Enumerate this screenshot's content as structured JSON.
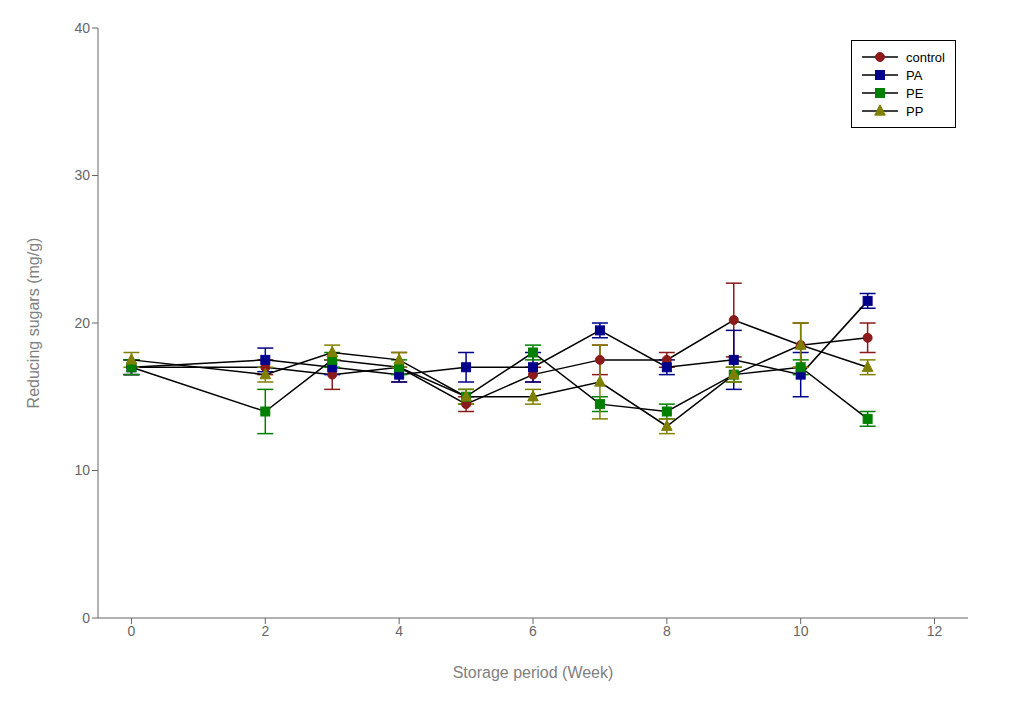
{
  "chart_data": {
    "type": "line",
    "xlabel": "Storage period (Week)",
    "ylabel": "Reducing sugars (mg/g)",
    "x": [
      0,
      2,
      3,
      4,
      5,
      6,
      7,
      8,
      9,
      10,
      11
    ],
    "color": "#000000",
    "series": [
      {
        "name": "control",
        "color": "#8B1A1A",
        "marker": "circle",
        "values": [
          17.0,
          17.0,
          16.5,
          17.0,
          14.5,
          16.5,
          17.5,
          17.5,
          20.2,
          18.5,
          19.0
        ],
        "errors": [
          0.5,
          0.5,
          1.0,
          1.0,
          0.5,
          0.5,
          1.0,
          0.5,
          2.5,
          1.5,
          1.0
        ]
      },
      {
        "name": "PA",
        "color": "#00008B",
        "marker": "square",
        "values": [
          17.0,
          17.5,
          17.0,
          16.5,
          17.0,
          17.0,
          19.5,
          17.0,
          17.5,
          16.5,
          21.5
        ],
        "errors": [
          0.5,
          0.8,
          0.5,
          0.5,
          1.0,
          1.0,
          0.5,
          0.5,
          2.0,
          1.5,
          0.5
        ]
      },
      {
        "name": "PE",
        "color": "#008000",
        "marker": "square",
        "values": [
          17.0,
          14.0,
          17.5,
          17.0,
          15.0,
          18.0,
          14.5,
          14.0,
          16.5,
          17.0,
          13.5
        ],
        "errors": [
          0.5,
          1.5,
          0.5,
          0.5,
          0.5,
          0.5,
          0.5,
          0.5,
          0.5,
          0.5,
          0.5
        ]
      },
      {
        "name": "PP",
        "color": "#808000",
        "marker": "triangle",
        "values": [
          17.5,
          16.5,
          18.0,
          17.5,
          15.0,
          15.0,
          16.0,
          13.0,
          16.5,
          18.5,
          17.0
        ],
        "errors": [
          0.5,
          0.5,
          0.5,
          0.5,
          0.5,
          0.5,
          2.5,
          0.5,
          0.5,
          1.5,
          0.5
        ]
      }
    ],
    "xlim": [
      -0.5,
      12.5
    ],
    "ylim": [
      0,
      40
    ],
    "xticks": [
      0,
      2,
      4,
      6,
      8,
      10,
      12
    ],
    "yticks": [
      0,
      10,
      20,
      30,
      40
    ],
    "grid": false,
    "legend": "upper right"
  }
}
